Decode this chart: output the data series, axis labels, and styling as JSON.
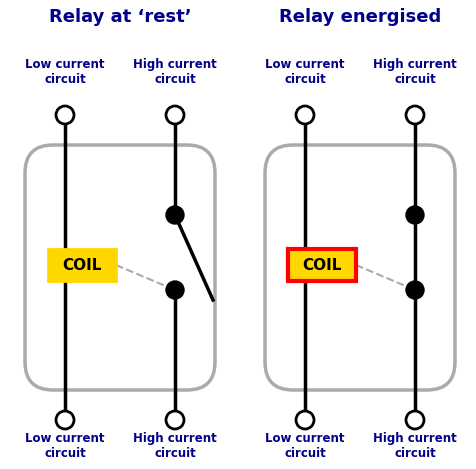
{
  "bg_color": "#ffffff",
  "title_color": "#00008B",
  "label_color": "#00008B",
  "line_color": "#000000",
  "box_color": "#aaaaaa",
  "dashed_color": "#aaaaaa",
  "coil_fill_rest": "#FFD700",
  "coil_border_rest": "#FFD700",
  "coil_fill_energised": "#FFD700",
  "coil_border_energised": "#FF0000",
  "coil_text_color": "#000000",
  "dot_color": "#000000",
  "circle_edge_color": "#000000",
  "title_rest": "Relay at ‘rest’",
  "title_energised": "Relay energised",
  "label_low": "Low current\ncircuit",
  "label_high": "High current\ncircuit",
  "title_fontsize": 13,
  "label_fontsize": 8.5,
  "coil_fontsize": 11,
  "fig_width": 4.77,
  "fig_height": 4.69,
  "dpi": 100
}
